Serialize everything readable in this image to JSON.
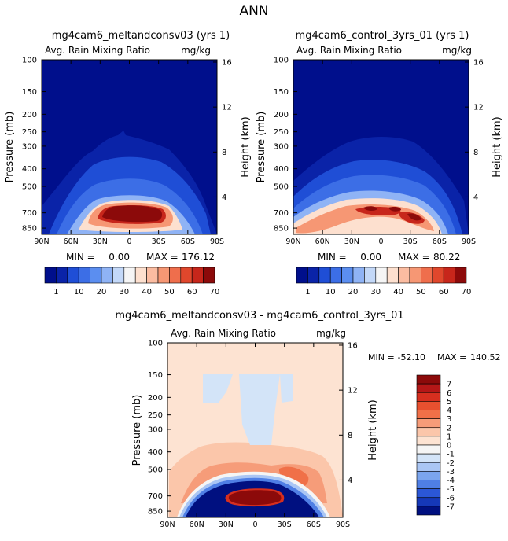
{
  "figure": {
    "title": "ANN"
  },
  "chart_data": [
    {
      "type": "heatmap",
      "title": "mg4cam6_meltandconsv03 (yrs 1)",
      "subtitle_left": "Avg. Rain Mixing Ratio",
      "units": "mg/kg",
      "ylabel": "Pressure (mb)",
      "ylabel2": "Height (km)",
      "x_ticks": [
        "90N",
        "60N",
        "30N",
        "0",
        "30S",
        "60S",
        "90S"
      ],
      "y_ticks": [
        "100",
        "150",
        "200",
        "250",
        "300",
        "400",
        "500",
        "700",
        "850"
      ],
      "y2_ticks": [
        "16",
        "12",
        "8",
        "4"
      ],
      "min_label": "MIN =",
      "min_value": "0.00",
      "max_label": "MAX =",
      "max_value": "176.12",
      "colorbar_labels": [
        "1",
        "10",
        "20",
        "30",
        "40",
        "50",
        "60",
        "70"
      ],
      "colors": [
        "#000f8c",
        "#0a23a8",
        "#1f4ed6",
        "#3c6ee6",
        "#5b8ef0",
        "#8fb3f5",
        "#c3d8f8",
        "#f5f5f5",
        "#fde0cf",
        "#fbbca1",
        "#f69774",
        "#ef6e4c",
        "#e0472c",
        "#c7261b",
        "#8c0a0a"
      ]
    },
    {
      "type": "heatmap",
      "title": "mg4cam6_control_3yrs_01 (yrs 1)",
      "subtitle_left": "Avg. Rain Mixing Ratio",
      "units": "mg/kg",
      "ylabel": "Pressure (mb)",
      "ylabel2": "Height (km)",
      "x_ticks": [
        "90N",
        "60N",
        "30N",
        "0",
        "30S",
        "60S",
        "90S"
      ],
      "y_ticks": [
        "100",
        "150",
        "200",
        "250",
        "300",
        "400",
        "500",
        "700",
        "850"
      ],
      "y2_ticks": [
        "16",
        "12",
        "8",
        "4"
      ],
      "min_label": "MIN =",
      "min_value": "0.00",
      "max_label": "MAX =",
      "max_value": "80.22",
      "colorbar_labels": [
        "1",
        "10",
        "20",
        "30",
        "40",
        "50",
        "60",
        "70"
      ],
      "colors": [
        "#000f8c",
        "#0a23a8",
        "#1f4ed6",
        "#3c6ee6",
        "#5b8ef0",
        "#8fb3f5",
        "#c3d8f8",
        "#f5f5f5",
        "#fde0cf",
        "#fbbca1",
        "#f69774",
        "#ef6e4c",
        "#e0472c",
        "#c7261b",
        "#8c0a0a"
      ]
    },
    {
      "type": "heatmap",
      "title": "mg4cam6_meltandconsv03 - mg4cam6_control_3yrs_01",
      "subtitle_left": "Avg. Rain Mixing Ratio",
      "units": "mg/kg",
      "ylabel": "Pressure (mb)",
      "ylabel2": "Height (km)",
      "x_ticks": [
        "90N",
        "60N",
        "30N",
        "0",
        "30S",
        "60S",
        "90S"
      ],
      "y_ticks": [
        "100",
        "150",
        "200",
        "250",
        "300",
        "400",
        "500",
        "700",
        "850"
      ],
      "y2_ticks": [
        "16",
        "12",
        "8",
        "4"
      ],
      "min_label": "MIN =",
      "min_value": "-52.10",
      "max_label": "MAX =",
      "max_value": "140.52",
      "colorbar_labels": [
        "7",
        "6",
        "5",
        "4",
        "3",
        "2",
        "1",
        "0",
        "-1",
        "-2",
        "-3",
        "-4",
        "-5",
        "-6",
        "-7"
      ],
      "colors": [
        "#8c0a0a",
        "#b51717",
        "#d62f1f",
        "#e8502f",
        "#f07048",
        "#f69c79",
        "#fbc6aa",
        "#fde3d2",
        "#f5f5f5",
        "#d3e4f8",
        "#aac6f4",
        "#7ba5ee",
        "#4f7fe5",
        "#2b57d6",
        "#1538b8",
        "#001080"
      ]
    }
  ]
}
